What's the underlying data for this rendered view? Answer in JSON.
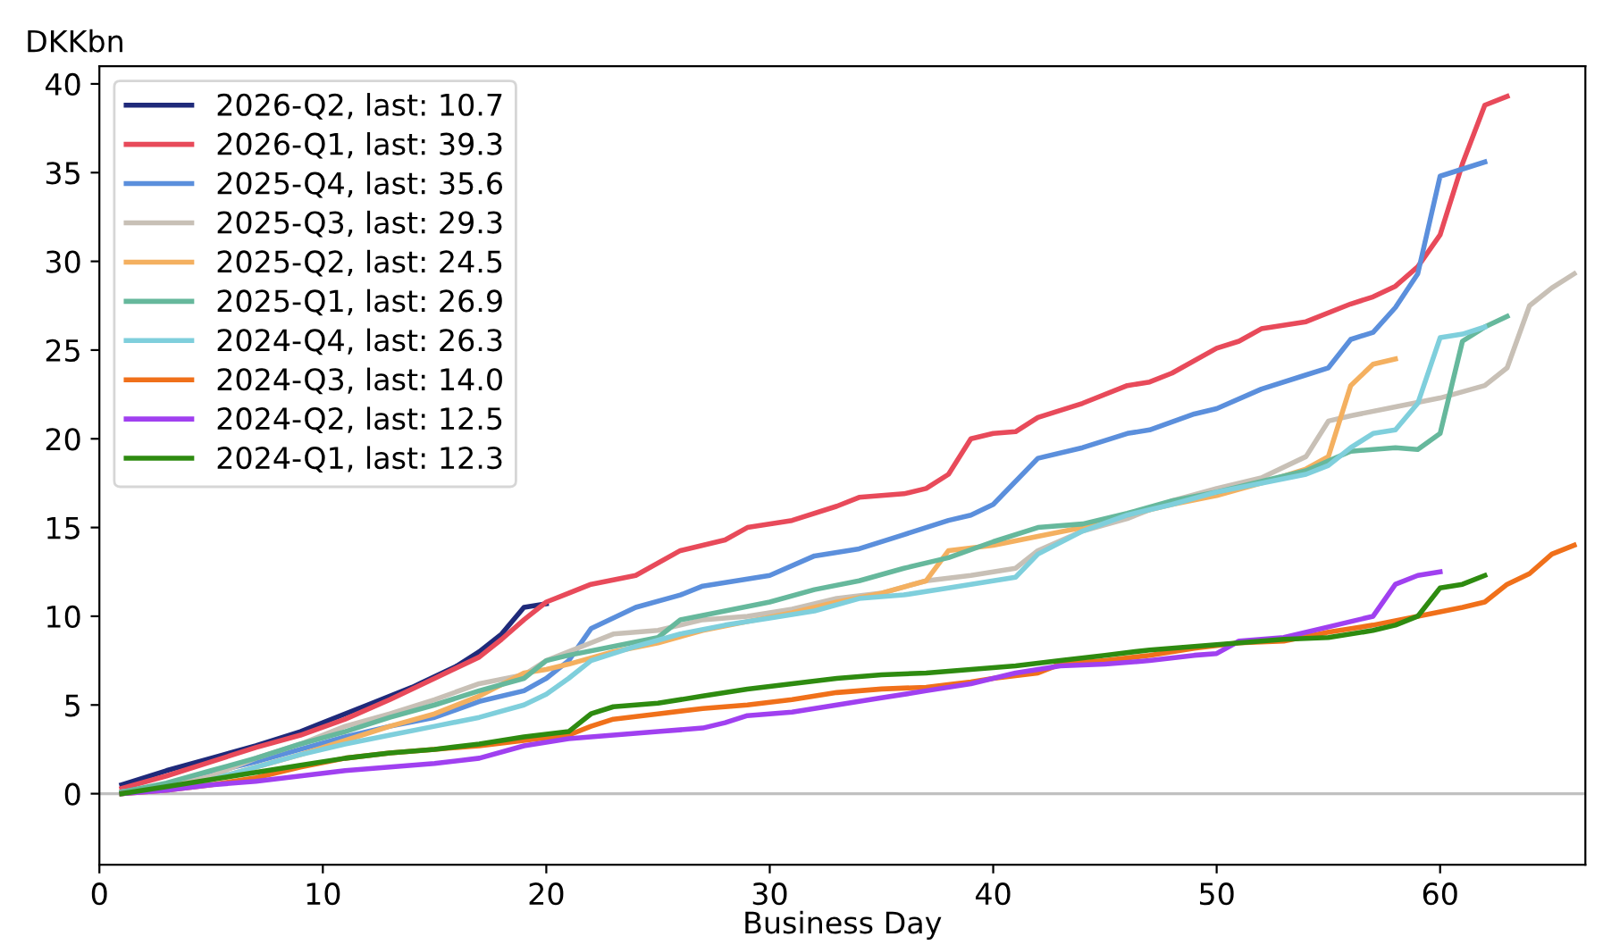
{
  "chart_data": {
    "type": "line",
    "xlabel": "Business Day",
    "ylabel": "DKKbn",
    "xlim": [
      0,
      66.5
    ],
    "ylim": [
      -4,
      41
    ],
    "xticks": [
      0,
      10,
      20,
      30,
      40,
      50,
      60
    ],
    "yticks": [
      0,
      5,
      10,
      15,
      20,
      25,
      30,
      35,
      40
    ],
    "grid": false,
    "legend": "top left",
    "line_style": "solid",
    "marker": "none",
    "ref_lines": [
      {
        "axis": "y",
        "value": 0,
        "color": "#c0c0c0"
      }
    ],
    "series": [
      {
        "name": "2026-Q2, last: 10.7",
        "color": "#1f2a7a",
        "x": [
          1,
          3,
          5,
          7,
          9,
          10,
          12,
          14,
          16,
          17,
          18,
          19,
          20
        ],
        "values": [
          0.5,
          1.3,
          2.0,
          2.7,
          3.5,
          4.0,
          5.0,
          6.0,
          7.2,
          8.0,
          9.0,
          10.5,
          10.7
        ]
      },
      {
        "name": "2026-Q1, last: 39.3",
        "color": "#e84a5a",
        "x": [
          1,
          3,
          5,
          7,
          9,
          11,
          13,
          15,
          17,
          18,
          19,
          20,
          21,
          22,
          24,
          26,
          28,
          29,
          31,
          33,
          34,
          36,
          37,
          38,
          39,
          40,
          41,
          42,
          44,
          46,
          47,
          48,
          50,
          51,
          52,
          54,
          56,
          57,
          58,
          59,
          60,
          61,
          62,
          63
        ],
        "values": [
          0.3,
          1.0,
          1.8,
          2.6,
          3.3,
          4.2,
          5.3,
          6.5,
          7.7,
          8.7,
          9.8,
          10.8,
          11.3,
          11.8,
          12.3,
          13.7,
          14.3,
          15.0,
          15.4,
          16.2,
          16.7,
          16.9,
          17.2,
          18.0,
          20.0,
          20.3,
          20.4,
          21.2,
          22.0,
          23.0,
          23.2,
          23.7,
          25.1,
          25.5,
          26.2,
          26.6,
          27.6,
          28.0,
          28.6,
          29.7,
          31.5,
          35.5,
          38.8,
          39.3
        ]
      },
      {
        "name": "2025-Q4, last: 35.6",
        "color": "#5b8fdc",
        "x": [
          1,
          3,
          5,
          7,
          9,
          11,
          13,
          15,
          17,
          19,
          20,
          21,
          22,
          24,
          26,
          27,
          29,
          30,
          32,
          34,
          36,
          38,
          39,
          40,
          42,
          44,
          46,
          47,
          49,
          50,
          52,
          54,
          55,
          56,
          57,
          58,
          59,
          60,
          62
        ],
        "values": [
          0.1,
          0.5,
          1.2,
          1.8,
          2.5,
          3.2,
          3.8,
          4.3,
          5.2,
          5.8,
          6.5,
          7.5,
          9.3,
          10.5,
          11.2,
          11.7,
          12.1,
          12.3,
          13.4,
          13.8,
          14.6,
          15.4,
          15.7,
          16.3,
          18.9,
          19.5,
          20.3,
          20.5,
          21.4,
          21.7,
          22.8,
          23.6,
          24.0,
          25.6,
          26.0,
          27.4,
          29.3,
          34.8,
          35.6
        ]
      },
      {
        "name": "2025-Q3, last: 29.3",
        "color": "#c8c0b6",
        "x": [
          1,
          3,
          5,
          7,
          9,
          11,
          13,
          15,
          17,
          19,
          20,
          21,
          22,
          23,
          25,
          27,
          29,
          31,
          33,
          35,
          37,
          39,
          41,
          42,
          44,
          46,
          48,
          50,
          52,
          54,
          55,
          56,
          58,
          60,
          62,
          63,
          64,
          65,
          66
        ],
        "values": [
          0.1,
          0.4,
          1.0,
          2.0,
          2.8,
          3.8,
          4.5,
          5.3,
          6.2,
          6.7,
          7.5,
          8.0,
          8.5,
          9.0,
          9.2,
          9.8,
          10.0,
          10.4,
          11.0,
          11.3,
          12.0,
          12.3,
          12.7,
          13.7,
          14.8,
          15.5,
          16.5,
          17.2,
          17.8,
          19.0,
          21.0,
          21.3,
          21.8,
          22.3,
          23.0,
          24.0,
          27.5,
          28.5,
          29.3
        ]
      },
      {
        "name": "2025-Q2, last: 24.5",
        "color": "#f4b060",
        "x": [
          1,
          3,
          5,
          7,
          9,
          11,
          13,
          15,
          17,
          19,
          20,
          21,
          23,
          25,
          27,
          29,
          31,
          33,
          35,
          37,
          38,
          40,
          42,
          44,
          46,
          48,
          50,
          52,
          54,
          55,
          56,
          57,
          58
        ],
        "values": [
          0.0,
          0.3,
          0.8,
          1.5,
          2.2,
          3.0,
          3.8,
          4.5,
          5.5,
          6.8,
          7.0,
          7.3,
          8.0,
          8.5,
          9.2,
          9.7,
          10.2,
          10.8,
          11.3,
          12.0,
          13.7,
          14.0,
          14.5,
          15.0,
          15.7,
          16.3,
          16.8,
          17.5,
          18.3,
          19.0,
          23.0,
          24.2,
          24.5
        ]
      },
      {
        "name": "2025-Q1, last: 26.9",
        "color": "#66b89c",
        "x": [
          1,
          3,
          5,
          7,
          9,
          11,
          13,
          15,
          17,
          19,
          20,
          21,
          23,
          25,
          26,
          28,
          30,
          32,
          34,
          36,
          38,
          40,
          42,
          44,
          46,
          48,
          50,
          52,
          54,
          56,
          58,
          59,
          60,
          61,
          62,
          63
        ],
        "values": [
          0.1,
          0.6,
          1.3,
          2.0,
          2.8,
          3.5,
          4.3,
          5.0,
          5.8,
          6.5,
          7.5,
          7.8,
          8.3,
          8.8,
          9.8,
          10.3,
          10.8,
          11.5,
          12.0,
          12.7,
          13.3,
          14.2,
          15.0,
          15.2,
          15.8,
          16.5,
          17.0,
          17.6,
          18.2,
          19.3,
          19.5,
          19.4,
          20.3,
          25.5,
          26.3,
          26.9
        ]
      },
      {
        "name": "2024-Q4, last: 26.3",
        "color": "#7fcfdc",
        "x": [
          1,
          3,
          5,
          7,
          9,
          11,
          13,
          15,
          17,
          19,
          20,
          21,
          22,
          24,
          26,
          28,
          30,
          32,
          34,
          36,
          38,
          40,
          41,
          42,
          44,
          46,
          48,
          50,
          52,
          54,
          55,
          56,
          57,
          58,
          59,
          60,
          61,
          62
        ],
        "values": [
          0.0,
          0.3,
          0.8,
          1.5,
          2.2,
          2.8,
          3.3,
          3.8,
          4.3,
          5.0,
          5.6,
          6.5,
          7.5,
          8.3,
          9.0,
          9.5,
          9.9,
          10.3,
          11.0,
          11.2,
          11.6,
          12.0,
          12.2,
          13.5,
          14.8,
          15.7,
          16.3,
          17.0,
          17.5,
          18.0,
          18.5,
          19.5,
          20.3,
          20.5,
          22.0,
          25.7,
          25.9,
          26.3
        ]
      },
      {
        "name": "2024-Q3, last: 14.0",
        "color": "#f0701a",
        "x": [
          1,
          3,
          5,
          7,
          9,
          11,
          13,
          15,
          17,
          19,
          21,
          22,
          23,
          25,
          27,
          29,
          31,
          33,
          35,
          37,
          39,
          40,
          42,
          43,
          45,
          47,
          49,
          51,
          53,
          55,
          57,
          59,
          61,
          62,
          63,
          64,
          65,
          66
        ],
        "values": [
          0.0,
          0.2,
          0.5,
          0.9,
          1.5,
          2.0,
          2.3,
          2.5,
          2.7,
          3.0,
          3.3,
          3.8,
          4.2,
          4.5,
          4.8,
          5.0,
          5.3,
          5.7,
          5.9,
          6.0,
          6.3,
          6.5,
          6.8,
          7.3,
          7.5,
          7.8,
          8.2,
          8.5,
          8.6,
          9.1,
          9.5,
          10.0,
          10.5,
          10.8,
          11.8,
          12.4,
          13.5,
          14.0
        ]
      },
      {
        "name": "2024-Q2, last: 12.5",
        "color": "#a040f0",
        "x": [
          1,
          3,
          5,
          7,
          9,
          11,
          13,
          15,
          17,
          19,
          21,
          23,
          25,
          27,
          28,
          29,
          31,
          33,
          35,
          37,
          39,
          41,
          43,
          45,
          47,
          49,
          50,
          51,
          53,
          55,
          56,
          57,
          58,
          59,
          60
        ],
        "values": [
          0.0,
          0.2,
          0.5,
          0.7,
          1.0,
          1.3,
          1.5,
          1.7,
          2.0,
          2.7,
          3.1,
          3.3,
          3.5,
          3.7,
          4.0,
          4.4,
          4.6,
          5.0,
          5.4,
          5.8,
          6.2,
          6.8,
          7.2,
          7.3,
          7.5,
          7.8,
          7.9,
          8.6,
          8.8,
          9.4,
          9.7,
          10.0,
          11.8,
          12.3,
          12.5
        ]
      },
      {
        "name": "2024-Q1, last: 12.3",
        "color": "#2e8b10",
        "x": [
          1,
          3,
          5,
          7,
          9,
          11,
          13,
          15,
          17,
          19,
          21,
          22,
          23,
          25,
          27,
          29,
          31,
          33,
          35,
          37,
          39,
          41,
          43,
          45,
          47,
          49,
          51,
          53,
          55,
          57,
          58,
          59,
          60,
          61,
          62
        ],
        "values": [
          0.0,
          0.4,
          0.8,
          1.2,
          1.6,
          2.0,
          2.3,
          2.5,
          2.8,
          3.2,
          3.5,
          4.5,
          4.9,
          5.1,
          5.5,
          5.9,
          6.2,
          6.5,
          6.7,
          6.8,
          7.0,
          7.2,
          7.5,
          7.8,
          8.1,
          8.3,
          8.5,
          8.7,
          8.8,
          9.2,
          9.5,
          10.0,
          11.6,
          11.8,
          12.3
        ]
      }
    ]
  }
}
